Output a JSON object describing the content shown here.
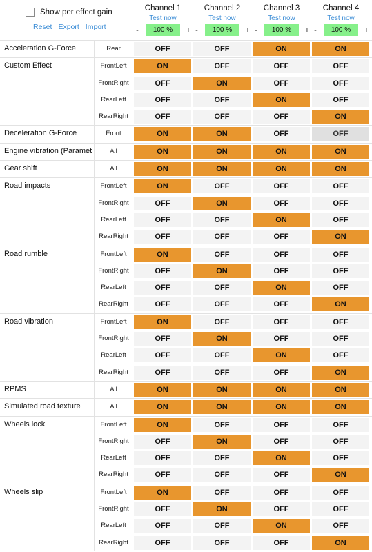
{
  "header": {
    "show_gain_label": "Show per effect gain",
    "reset_label": "Reset",
    "export_label": "Export",
    "import_label": "Import",
    "channels": [
      {
        "title": "Channel 1",
        "test": "Test now",
        "minus": "-",
        "gain": "100 %",
        "plus": "+"
      },
      {
        "title": "Channel 2",
        "test": "Test now",
        "minus": "-",
        "gain": "100 %",
        "plus": "+"
      },
      {
        "title": "Channel 3",
        "test": "Test now",
        "minus": "-",
        "gain": "100 %",
        "plus": "+"
      },
      {
        "title": "Channel 4",
        "test": "Test now",
        "minus": "-",
        "gain": "100 %",
        "plus": "+"
      }
    ]
  },
  "colors": {
    "on": "#e8962e",
    "off": "#f3f3f3",
    "gain": "#86f08a",
    "link": "#3c8dd6"
  },
  "effects": [
    {
      "name": "Acceleration G-Force",
      "rows": [
        {
          "pos": "Rear",
          "ch": [
            "OFF",
            "OFF",
            "ON",
            "ON"
          ]
        }
      ]
    },
    {
      "name": "Custom Effect",
      "rows": [
        {
          "pos": "FrontLeft",
          "ch": [
            "ON",
            "OFF",
            "OFF",
            "OFF"
          ]
        },
        {
          "pos": "FrontRight",
          "ch": [
            "OFF",
            "ON",
            "OFF",
            "OFF"
          ]
        },
        {
          "pos": "RearLeft",
          "ch": [
            "OFF",
            "OFF",
            "ON",
            "OFF"
          ]
        },
        {
          "pos": "RearRight",
          "ch": [
            "OFF",
            "OFF",
            "OFF",
            "ON"
          ]
        }
      ]
    },
    {
      "name": "Deceleration G-Force",
      "rows": [
        {
          "pos": "Front",
          "ch": [
            "ON",
            "ON",
            "OFF",
            "OFF"
          ],
          "disabled": [
            false,
            false,
            false,
            true
          ]
        }
      ]
    },
    {
      "name": "Engine vibration (Parametr",
      "rows": [
        {
          "pos": "All",
          "ch": [
            "ON",
            "ON",
            "ON",
            "ON"
          ]
        }
      ]
    },
    {
      "name": "Gear shift",
      "rows": [
        {
          "pos": "All",
          "ch": [
            "ON",
            "ON",
            "ON",
            "ON"
          ]
        }
      ]
    },
    {
      "name": "Road impacts",
      "rows": [
        {
          "pos": "FrontLeft",
          "ch": [
            "ON",
            "OFF",
            "OFF",
            "OFF"
          ]
        },
        {
          "pos": "FrontRight",
          "ch": [
            "OFF",
            "ON",
            "OFF",
            "OFF"
          ]
        },
        {
          "pos": "RearLeft",
          "ch": [
            "OFF",
            "OFF",
            "ON",
            "OFF"
          ]
        },
        {
          "pos": "RearRight",
          "ch": [
            "OFF",
            "OFF",
            "OFF",
            "ON"
          ]
        }
      ]
    },
    {
      "name": "Road rumble",
      "rows": [
        {
          "pos": "FrontLeft",
          "ch": [
            "ON",
            "OFF",
            "OFF",
            "OFF"
          ]
        },
        {
          "pos": "FrontRight",
          "ch": [
            "OFF",
            "ON",
            "OFF",
            "OFF"
          ]
        },
        {
          "pos": "RearLeft",
          "ch": [
            "OFF",
            "OFF",
            "ON",
            "OFF"
          ]
        },
        {
          "pos": "RearRight",
          "ch": [
            "OFF",
            "OFF",
            "OFF",
            "ON"
          ]
        }
      ]
    },
    {
      "name": "Road vibration",
      "rows": [
        {
          "pos": "FrontLeft",
          "ch": [
            "ON",
            "OFF",
            "OFF",
            "OFF"
          ]
        },
        {
          "pos": "FrontRight",
          "ch": [
            "OFF",
            "ON",
            "OFF",
            "OFF"
          ]
        },
        {
          "pos": "RearLeft",
          "ch": [
            "OFF",
            "OFF",
            "ON",
            "OFF"
          ]
        },
        {
          "pos": "RearRight",
          "ch": [
            "OFF",
            "OFF",
            "OFF",
            "ON"
          ]
        }
      ]
    },
    {
      "name": "RPMS",
      "rows": [
        {
          "pos": "All",
          "ch": [
            "ON",
            "ON",
            "ON",
            "ON"
          ]
        }
      ]
    },
    {
      "name": "Simulated road texture",
      "rows": [
        {
          "pos": "All",
          "ch": [
            "ON",
            "ON",
            "ON",
            "ON"
          ]
        }
      ]
    },
    {
      "name": "Wheels lock",
      "rows": [
        {
          "pos": "FrontLeft",
          "ch": [
            "ON",
            "OFF",
            "OFF",
            "OFF"
          ]
        },
        {
          "pos": "FrontRight",
          "ch": [
            "OFF",
            "ON",
            "OFF",
            "OFF"
          ]
        },
        {
          "pos": "RearLeft",
          "ch": [
            "OFF",
            "OFF",
            "ON",
            "OFF"
          ]
        },
        {
          "pos": "RearRight",
          "ch": [
            "OFF",
            "OFF",
            "OFF",
            "ON"
          ]
        }
      ]
    },
    {
      "name": "Wheels slip",
      "rows": [
        {
          "pos": "FrontLeft",
          "ch": [
            "ON",
            "OFF",
            "OFF",
            "OFF"
          ]
        },
        {
          "pos": "FrontRight",
          "ch": [
            "OFF",
            "ON",
            "OFF",
            "OFF"
          ]
        },
        {
          "pos": "RearLeft",
          "ch": [
            "OFF",
            "OFF",
            "ON",
            "OFF"
          ]
        },
        {
          "pos": "RearRight",
          "ch": [
            "OFF",
            "OFF",
            "OFF",
            "ON"
          ]
        }
      ]
    }
  ]
}
